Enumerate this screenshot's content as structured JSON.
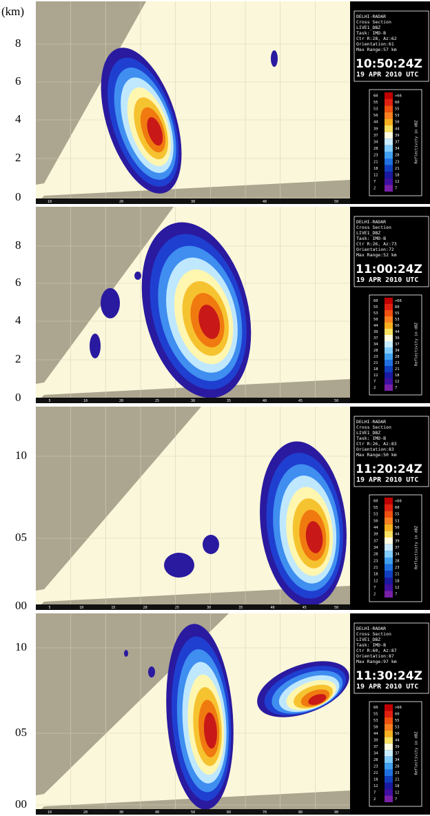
{
  "unit_label": "(km)",
  "panels": [
    {
      "y_labels": [
        "0",
        "2",
        "4",
        "6",
        "8"
      ],
      "x_labels": [
        "10",
        "20",
        "30",
        "40",
        "50"
      ],
      "info": {
        "lines": [
          "DELHI-RADAR",
          "Cross Section",
          "LIVE1_DBZ",
          "Task: IMD-B",
          "Ctr R:28, Az:62",
          "Orientation:61",
          "Max Range:57 km"
        ],
        "time": "10:50:24Z",
        "date": "19 APR 2010 UTC"
      },
      "colorbar": {
        "title": "Reflectivity in dBZ",
        "left": [
          "60",
          "55",
          "53",
          "50",
          "44",
          "39",
          "37",
          "34",
          "28",
          "23",
          "21",
          "18",
          "12",
          "7",
          "2"
        ],
        "right": [
          ">66",
          "60",
          "55",
          "53",
          "50",
          "44",
          "39",
          "37",
          "34",
          "28",
          "23",
          "21",
          "18",
          "12",
          "7"
        ]
      }
    },
    {
      "y_labels": [
        "0",
        "2",
        "4",
        "6",
        "8"
      ],
      "x_labels": [
        "5",
        "10",
        "20",
        "25",
        "30",
        "35",
        "40",
        "45",
        "50"
      ],
      "info": {
        "lines": [
          "DELHI-RADAR",
          "Cross Section",
          "LIVE1_DBZ",
          "Task: IMD-B",
          "Ctr R:26, Az:73",
          "Orientation:72",
          "Max Range:52 km"
        ],
        "time": "11:00:24Z",
        "date": "19 APR 2010 UTC"
      },
      "colorbar": {
        "title": "Reflectivity in dBZ",
        "left": [
          "60",
          "55",
          "53",
          "50",
          "44",
          "39",
          "37",
          "34",
          "28",
          "23",
          "21",
          "18",
          "12",
          "7",
          "2"
        ],
        "right": [
          ">66",
          "60",
          "55",
          "53",
          "50",
          "44",
          "39",
          "37",
          "34",
          "28",
          "23",
          "21",
          "18",
          "12",
          "7"
        ]
      }
    },
    {
      "y_labels": [
        "00",
        "05",
        "10"
      ],
      "x_labels": [
        "5",
        "10",
        "15",
        "20",
        "25",
        "30",
        "35",
        "40",
        "45",
        "50"
      ],
      "info": {
        "lines": [
          "DELHI-RADAR",
          "Cross Section",
          "LIVE1_DBZ",
          "Task: IMD-B",
          "Ctr R:26, Az:83",
          "Orientation:83",
          "Max Range:50 km"
        ],
        "time": "11:20:24Z",
        "date": "19 APR 2010 UTC"
      },
      "colorbar": {
        "title": "Reflectivity in dBZ",
        "left": [
          "60",
          "55",
          "53",
          "50",
          "44",
          "39",
          "37",
          "34",
          "28",
          "23",
          "21",
          "18",
          "12",
          "7",
          "2"
        ],
        "right": [
          ">66",
          "60",
          "55",
          "53",
          "50",
          "44",
          "39",
          "37",
          "34",
          "28",
          "23",
          "21",
          "18",
          "12",
          "7"
        ]
      }
    },
    {
      "y_labels": [
        "00",
        "05",
        "10"
      ],
      "x_labels": [
        "10",
        "20",
        "30",
        "40",
        "50",
        "60",
        "70",
        "80",
        "90"
      ],
      "info": {
        "lines": [
          "DELHI-RADAR",
          "Cross Section",
          "LIVE1_DBZ",
          "Task: IMD-B",
          "Ctr R:60, Az:87",
          "Orientation:87",
          "Max Range:97 km"
        ],
        "time": "11:30:24Z",
        "date": "19 APR 2010 UTC"
      },
      "colorbar": {
        "title": "Reflectivity in dBZ",
        "left": [
          "60",
          "55",
          "53",
          "50",
          "44",
          "39",
          "37",
          "34",
          "28",
          "23",
          "21",
          "18",
          "12",
          "7",
          "2"
        ],
        "right": [
          ">66",
          "60",
          "55",
          "53",
          "50",
          "44",
          "39",
          "37",
          "34",
          "28",
          "23",
          "21",
          "18",
          "12",
          "7"
        ]
      }
    }
  ]
}
